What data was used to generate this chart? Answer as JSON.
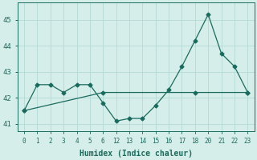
{
  "xlabel": "Humidex (Indice chaleur)",
  "background_color": "#d5eeea",
  "grid_color": "#b8ddd8",
  "line_color": "#1a6b5e",
  "tick_labels": [
    "0",
    "1",
    "2",
    "3",
    "4",
    "5",
    "6",
    "12",
    "13",
    "14",
    "15",
    "16",
    "17",
    "18",
    "20",
    "21",
    "22",
    "23"
  ],
  "series1_y": [
    41.5,
    42.5,
    42.5,
    42.2,
    42.5,
    42.5,
    41.8,
    41.1,
    41.2,
    41.2,
    41.7,
    42.3,
    43.2,
    44.2,
    45.2,
    43.7,
    43.2,
    42.2
  ],
  "series2_indices": [
    0,
    6,
    13,
    17
  ],
  "series2_y": [
    41.5,
    42.2,
    42.2,
    42.2
  ],
  "ylim": [
    40.7,
    45.65
  ],
  "yticks": [
    41,
    42,
    43,
    44,
    45
  ],
  "marker": "D",
  "markersize": 2.5,
  "linewidth": 0.9
}
